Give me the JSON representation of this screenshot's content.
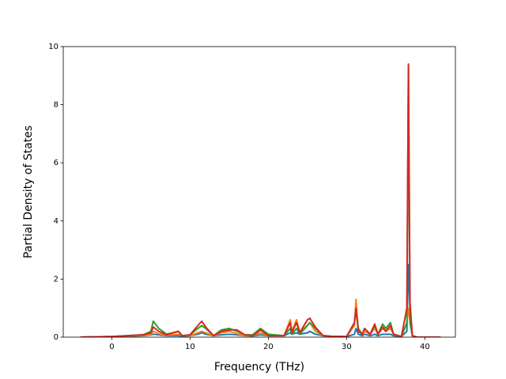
{
  "chart_data": {
    "type": "line",
    "x_label": "Frequency (THz)",
    "y_label": "Partial Density of States",
    "x": [
      -4,
      0,
      2,
      4,
      5,
      5.3,
      6,
      7,
      8.5,
      9,
      10,
      11,
      11.5,
      12,
      13,
      14,
      15,
      16,
      17,
      18,
      19,
      20,
      22,
      22.8,
      23,
      23.6,
      24,
      25,
      25.3,
      26,
      27,
      28,
      30,
      31,
      31.2,
      31.5,
      32,
      32.3,
      33,
      33.6,
      34,
      34.6,
      35,
      35.6,
      36,
      37,
      37.7,
      37.9,
      38.1,
      38.4,
      39,
      42
    ],
    "series": [
      {
        "color": "#1f77b4",
        "values": [
          0,
          0.02,
          0.03,
          0.05,
          0.08,
          0.1,
          0.08,
          0.05,
          0.05,
          0.03,
          0.05,
          0.1,
          0.15,
          0.1,
          0.05,
          0.08,
          0.1,
          0.08,
          0.05,
          0.04,
          0.08,
          0.05,
          0.05,
          0.15,
          0.1,
          0.15,
          0.1,
          0.15,
          0.2,
          0.1,
          0.05,
          0.03,
          0.02,
          0.1,
          0.3,
          0.1,
          0.05,
          0.1,
          0.05,
          0.1,
          0.05,
          0.1,
          0.1,
          0.1,
          0.05,
          0.02,
          0.2,
          2.5,
          1.0,
          0.05,
          0,
          0
        ]
      },
      {
        "color": "#ff7f0e",
        "values": [
          0,
          0.02,
          0.04,
          0.06,
          0.1,
          0.2,
          0.12,
          0.06,
          0.1,
          0.05,
          0.05,
          0.15,
          0.2,
          0.15,
          0.05,
          0.15,
          0.2,
          0.12,
          0.05,
          0.05,
          0.15,
          0.05,
          0.05,
          0.6,
          0.2,
          0.6,
          0.2,
          0.4,
          0.5,
          0.2,
          0.05,
          0.03,
          0.02,
          0.4,
          1.3,
          0.2,
          0.1,
          0.2,
          0.1,
          0.3,
          0.1,
          0.3,
          0.2,
          0.3,
          0.1,
          0.02,
          0.5,
          1.0,
          0.5,
          0.05,
          0,
          0
        ]
      },
      {
        "color": "#2ca02c",
        "values": [
          0,
          0.02,
          0.05,
          0.08,
          0.2,
          0.55,
          0.3,
          0.1,
          0.2,
          0.05,
          0.08,
          0.3,
          0.4,
          0.3,
          0.05,
          0.25,
          0.3,
          0.2,
          0.08,
          0.08,
          0.3,
          0.1,
          0.05,
          0.3,
          0.1,
          0.3,
          0.1,
          0.4,
          0.5,
          0.3,
          0.05,
          0.03,
          0.02,
          0.5,
          0.9,
          0.3,
          0.1,
          0.3,
          0.1,
          0.4,
          0.1,
          0.45,
          0.3,
          0.5,
          0.1,
          0.02,
          0.5,
          9.3,
          0.5,
          0.05,
          0,
          0
        ]
      },
      {
        "color": "#d62728",
        "values": [
          0,
          0.02,
          0.05,
          0.08,
          0.15,
          0.35,
          0.2,
          0.08,
          0.2,
          0.05,
          0.08,
          0.4,
          0.55,
          0.35,
          0.05,
          0.2,
          0.25,
          0.25,
          0.08,
          0.05,
          0.25,
          0.05,
          0.05,
          0.5,
          0.15,
          0.5,
          0.15,
          0.6,
          0.65,
          0.35,
          0.05,
          0.03,
          0.02,
          0.5,
          1.0,
          0.2,
          0.1,
          0.3,
          0.1,
          0.45,
          0.1,
          0.35,
          0.2,
          0.4,
          0.1,
          0.02,
          1.0,
          9.4,
          1.2,
          0.05,
          0,
          0
        ]
      }
    ],
    "xlim": [
      -6.2,
      43.9
    ],
    "ylim": [
      0,
      10
    ],
    "xticks": [
      0,
      10,
      20,
      30,
      40
    ],
    "yticks": [
      0,
      2,
      4,
      6,
      8,
      10
    ],
    "grid": false
  }
}
